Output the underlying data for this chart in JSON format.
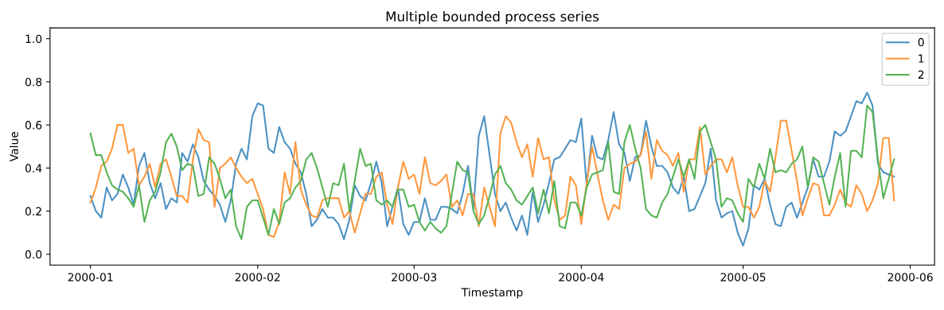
{
  "chart_data": {
    "type": "line",
    "title": "Multiple bounded process series",
    "xlabel": "Timestamp",
    "ylabel": "Value",
    "x": [
      "2000-01-01",
      "2000-01-02",
      "2000-01-03",
      "2000-01-04",
      "2000-01-05",
      "2000-01-06",
      "2000-01-07",
      "2000-01-08",
      "2000-01-09",
      "2000-01-10",
      "2000-01-11",
      "2000-01-12",
      "2000-01-13",
      "2000-01-14",
      "2000-01-15",
      "2000-01-16",
      "2000-01-17",
      "2000-01-18",
      "2000-01-19",
      "2000-01-20",
      "2000-01-21",
      "2000-01-22",
      "2000-01-23",
      "2000-01-24",
      "2000-01-25",
      "2000-01-26",
      "2000-01-27",
      "2000-01-28",
      "2000-01-29",
      "2000-01-30",
      "2000-01-31",
      "2000-02-01",
      "2000-02-02",
      "2000-02-03",
      "2000-02-04",
      "2000-02-05",
      "2000-02-06",
      "2000-02-07",
      "2000-02-08",
      "2000-02-09",
      "2000-02-10",
      "2000-02-11",
      "2000-02-12",
      "2000-02-13",
      "2000-02-14",
      "2000-02-15",
      "2000-02-16",
      "2000-02-17",
      "2000-02-18",
      "2000-02-19",
      "2000-02-20",
      "2000-02-21",
      "2000-02-22",
      "2000-02-23",
      "2000-02-24",
      "2000-02-25",
      "2000-02-26",
      "2000-02-27",
      "2000-02-28",
      "2000-02-29",
      "2000-03-01",
      "2000-03-02",
      "2000-03-03",
      "2000-03-04",
      "2000-03-05",
      "2000-03-06",
      "2000-03-07",
      "2000-03-08",
      "2000-03-09",
      "2000-03-10",
      "2000-03-11",
      "2000-03-12",
      "2000-03-13",
      "2000-03-14",
      "2000-03-15",
      "2000-03-16",
      "2000-03-17",
      "2000-03-18",
      "2000-03-19",
      "2000-03-20",
      "2000-03-21",
      "2000-03-22",
      "2000-03-23",
      "2000-03-24",
      "2000-03-25",
      "2000-03-26",
      "2000-03-27",
      "2000-03-28",
      "2000-03-29",
      "2000-03-30",
      "2000-03-31",
      "2000-04-01",
      "2000-04-02",
      "2000-04-03",
      "2000-04-04",
      "2000-04-05",
      "2000-04-06",
      "2000-04-07",
      "2000-04-08",
      "2000-04-09",
      "2000-04-10",
      "2000-04-11",
      "2000-04-12",
      "2000-04-13",
      "2000-04-14",
      "2000-04-15",
      "2000-04-16",
      "2000-04-17",
      "2000-04-18",
      "2000-04-19",
      "2000-04-20",
      "2000-04-21",
      "2000-04-22",
      "2000-04-23",
      "2000-04-24",
      "2000-04-25",
      "2000-04-26",
      "2000-04-27",
      "2000-04-28",
      "2000-04-29",
      "2000-04-30",
      "2000-05-01",
      "2000-05-02",
      "2000-05-03",
      "2000-05-04",
      "2000-05-05",
      "2000-05-06",
      "2000-05-07",
      "2000-05-08",
      "2000-05-09",
      "2000-05-10",
      "2000-05-11",
      "2000-05-12",
      "2000-05-13",
      "2000-05-14",
      "2000-05-15",
      "2000-05-16",
      "2000-05-17",
      "2000-05-18",
      "2000-05-19",
      "2000-05-20",
      "2000-05-21",
      "2000-05-22",
      "2000-05-23",
      "2000-05-24",
      "2000-05-25",
      "2000-05-26",
      "2000-05-27",
      "2000-05-28",
      "2000-05-29"
    ],
    "series": [
      {
        "name": "0",
        "color": "#4c92c3",
        "values": [
          0.27,
          0.2,
          0.17,
          0.31,
          0.25,
          0.28,
          0.37,
          0.31,
          0.23,
          0.41,
          0.47,
          0.33,
          0.26,
          0.33,
          0.21,
          0.26,
          0.24,
          0.47,
          0.43,
          0.51,
          0.45,
          0.34,
          0.3,
          0.27,
          0.23,
          0.15,
          0.25,
          0.42,
          0.49,
          0.44,
          0.64,
          0.7,
          0.69,
          0.49,
          0.47,
          0.59,
          0.52,
          0.49,
          0.42,
          0.38,
          0.28,
          0.13,
          0.16,
          0.21,
          0.17,
          0.17,
          0.14,
          0.07,
          0.16,
          0.32,
          0.27,
          0.25,
          0.33,
          0.43,
          0.33,
          0.13,
          0.22,
          0.31,
          0.14,
          0.09,
          0.15,
          0.15,
          0.26,
          0.16,
          0.16,
          0.22,
          0.22,
          0.21,
          0.19,
          0.28,
          0.41,
          0.21,
          0.55,
          0.64,
          0.46,
          0.28,
          0.2,
          0.24,
          0.17,
          0.11,
          0.18,
          0.09,
          0.29,
          0.15,
          0.23,
          0.33,
          0.44,
          0.45,
          0.49,
          0.53,
          0.52,
          0.63,
          0.32,
          0.55,
          0.45,
          0.44,
          0.53,
          0.66,
          0.51,
          0.47,
          0.34,
          0.45,
          0.46,
          0.62,
          0.5,
          0.41,
          0.41,
          0.38,
          0.31,
          0.28,
          0.36,
          0.2,
          0.21,
          0.27,
          0.33,
          0.49,
          0.25,
          0.17,
          0.19,
          0.2,
          0.1,
          0.04,
          0.12,
          0.32,
          0.3,
          0.35,
          0.23,
          0.14,
          0.13,
          0.22,
          0.24,
          0.17,
          0.24,
          0.31,
          0.44,
          0.36,
          0.36,
          0.43,
          0.57,
          0.55,
          0.57,
          0.64,
          0.71,
          0.7,
          0.75,
          0.69,
          0.42,
          0.38,
          0.37,
          0.36
        ]
      },
      {
        "name": "1",
        "color": "#ff983e",
        "values": [
          0.24,
          0.31,
          0.41,
          0.43,
          0.49,
          0.6,
          0.6,
          0.47,
          0.49,
          0.32,
          0.36,
          0.42,
          0.31,
          0.42,
          0.44,
          0.36,
          0.27,
          0.27,
          0.24,
          0.44,
          0.58,
          0.53,
          0.52,
          0.22,
          0.4,
          0.42,
          0.45,
          0.4,
          0.36,
          0.33,
          0.35,
          0.28,
          0.21,
          0.09,
          0.08,
          0.15,
          0.38,
          0.28,
          0.52,
          0.3,
          0.23,
          0.18,
          0.17,
          0.25,
          0.26,
          0.26,
          0.26,
          0.17,
          0.2,
          0.1,
          0.19,
          0.28,
          0.28,
          0.36,
          0.38,
          0.23,
          0.14,
          0.31,
          0.43,
          0.35,
          0.37,
          0.28,
          0.45,
          0.33,
          0.32,
          0.34,
          0.37,
          0.22,
          0.25,
          0.18,
          0.28,
          0.28,
          0.13,
          0.31,
          0.22,
          0.13,
          0.56,
          0.64,
          0.61,
          0.52,
          0.45,
          0.51,
          0.36,
          0.54,
          0.44,
          0.45,
          0.25,
          0.16,
          0.18,
          0.36,
          0.32,
          0.14,
          0.33,
          0.5,
          0.37,
          0.25,
          0.16,
          0.23,
          0.21,
          0.4,
          0.42,
          0.43,
          0.46,
          0.57,
          0.35,
          0.53,
          0.48,
          0.46,
          0.41,
          0.47,
          0.29,
          0.44,
          0.44,
          0.59,
          0.37,
          0.41,
          0.44,
          0.44,
          0.38,
          0.45,
          0.32,
          0.22,
          0.22,
          0.17,
          0.22,
          0.34,
          0.29,
          0.45,
          0.62,
          0.62,
          0.48,
          0.34,
          0.18,
          0.26,
          0.33,
          0.32,
          0.18,
          0.18,
          0.23,
          0.3,
          0.24,
          0.22,
          0.32,
          0.28,
          0.2,
          0.25,
          0.33,
          0.54,
          0.54,
          0.25
        ]
      },
      {
        "name": "2",
        "color": "#56b356",
        "values": [
          0.56,
          0.46,
          0.46,
          0.38,
          0.32,
          0.3,
          0.29,
          0.26,
          0.22,
          0.32,
          0.15,
          0.25,
          0.29,
          0.38,
          0.52,
          0.56,
          0.5,
          0.39,
          0.42,
          0.41,
          0.27,
          0.28,
          0.45,
          0.42,
          0.35,
          0.26,
          0.3,
          0.13,
          0.07,
          0.22,
          0.25,
          0.25,
          0.17,
          0.09,
          0.21,
          0.14,
          0.24,
          0.26,
          0.31,
          0.34,
          0.44,
          0.47,
          0.4,
          0.31,
          0.22,
          0.33,
          0.32,
          0.42,
          0.2,
          0.34,
          0.49,
          0.41,
          0.42,
          0.25,
          0.23,
          0.25,
          0.22,
          0.3,
          0.3,
          0.22,
          0.23,
          0.15,
          0.11,
          0.15,
          0.12,
          0.1,
          0.13,
          0.28,
          0.43,
          0.39,
          0.38,
          0.2,
          0.14,
          0.18,
          0.27,
          0.37,
          0.41,
          0.33,
          0.3,
          0.25,
          0.23,
          0.27,
          0.31,
          0.19,
          0.3,
          0.19,
          0.34,
          0.13,
          0.12,
          0.24,
          0.24,
          0.18,
          0.31,
          0.37,
          0.38,
          0.39,
          0.52,
          0.29,
          0.28,
          0.52,
          0.6,
          0.49,
          0.4,
          0.21,
          0.18,
          0.17,
          0.24,
          0.28,
          0.36,
          0.44,
          0.36,
          0.44,
          0.35,
          0.57,
          0.6,
          0.52,
          0.44,
          0.22,
          0.26,
          0.25,
          0.19,
          0.15,
          0.35,
          0.31,
          0.42,
          0.35,
          0.49,
          0.38,
          0.39,
          0.38,
          0.42,
          0.44,
          0.5,
          0.31,
          0.45,
          0.43,
          0.33,
          0.23,
          0.36,
          0.47,
          0.22,
          0.48,
          0.48,
          0.45,
          0.69,
          0.66,
          0.44,
          0.26,
          0.35,
          0.44
        ]
      }
    ],
    "xlim": [
      "1999-12-24T12:00",
      "2000-06-05T12:00"
    ],
    "xticks": [
      "2000-01",
      "2000-02",
      "2000-03",
      "2000-04",
      "2000-05",
      "2000-06"
    ],
    "ylim": [
      -0.05,
      1.05
    ],
    "yticks": [
      {
        "value": 0,
        "label": "0.0"
      },
      {
        "value": 0.2,
        "label": "0.2"
      },
      {
        "value": 0.4,
        "label": "0.4"
      },
      {
        "value": 0.6,
        "label": "0.6"
      },
      {
        "value": 0.8,
        "label": "0.8"
      },
      {
        "value": 1,
        "label": "1.0"
      }
    ],
    "legend": "top right",
    "grid": false,
    "line_style": "solid",
    "marker": "none"
  }
}
